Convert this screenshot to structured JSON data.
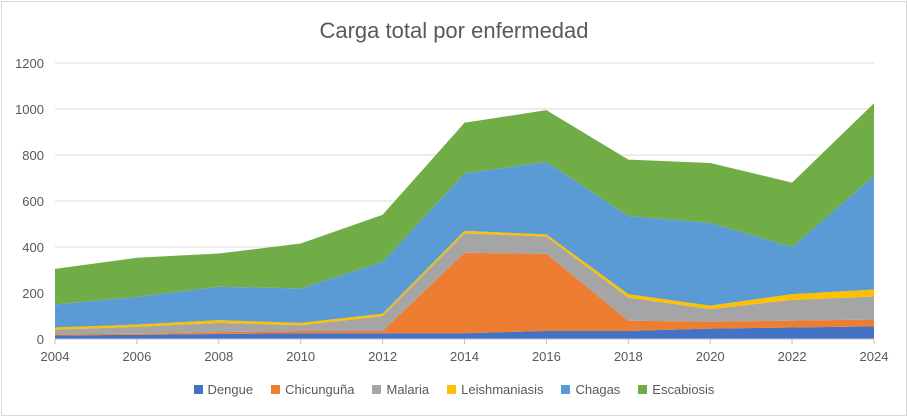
{
  "chart_data": {
    "type": "area",
    "stacked": true,
    "title": "Carga total por enfermedad",
    "xlabel": "",
    "ylabel": "",
    "x": [
      2004,
      2006,
      2008,
      2010,
      2012,
      2014,
      2016,
      2018,
      2020,
      2022,
      2024
    ],
    "x_tick_labels": [
      "2004",
      "2006",
      "2008",
      "2010",
      "2012",
      "2014",
      "2016",
      "2018",
      "2020",
      "2022",
      "2024"
    ],
    "ylim": [
      0,
      1200
    ],
    "y_ticks": [
      0,
      200,
      400,
      600,
      800,
      1000,
      1200
    ],
    "grid": true,
    "legend_position": "bottom",
    "series": [
      {
        "name": "Dengue",
        "color": "#4472C4",
        "values": [
          15,
          18,
          22,
          25,
          25,
          25,
          35,
          35,
          45,
          50,
          55
        ]
      },
      {
        "name": "Chicunguña",
        "color": "#ED7D31",
        "values": [
          5,
          5,
          8,
          10,
          10,
          350,
          335,
          45,
          30,
          30,
          30
        ]
      },
      {
        "name": "Malaria",
        "color": "#A5A5A5",
        "values": [
          20,
          30,
          40,
          25,
          65,
          85,
          75,
          100,
          55,
          90,
          100
        ]
      },
      {
        "name": "Leishmaniasis",
        "color": "#FFC000",
        "values": [
          10,
          10,
          12,
          10,
          10,
          10,
          10,
          15,
          15,
          25,
          30
        ]
      },
      {
        "name": "Chagas",
        "color": "#5B9BD5",
        "values": [
          100,
          120,
          145,
          150,
          225,
          250,
          315,
          340,
          360,
          205,
          495
        ]
      },
      {
        "name": "Escabiosis",
        "color": "#70AD47",
        "values": [
          155,
          170,
          145,
          195,
          205,
          220,
          225,
          245,
          260,
          280,
          315
        ]
      }
    ]
  }
}
